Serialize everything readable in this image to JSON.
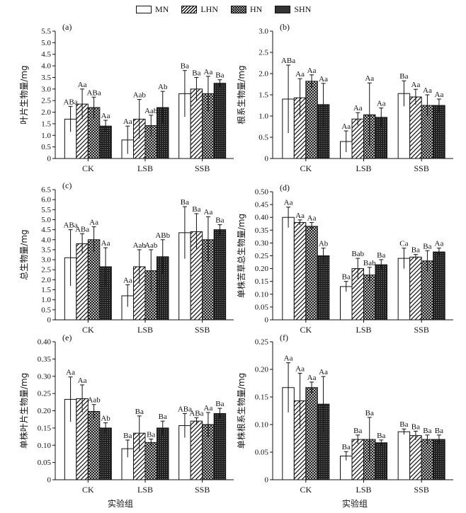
{
  "legend": {
    "series": [
      {
        "name": "MN",
        "pattern": "white"
      },
      {
        "name": "LHN",
        "pattern": "hatch"
      },
      {
        "name": "HN",
        "pattern": "cross"
      },
      {
        "name": "SHN",
        "pattern": "dense"
      }
    ]
  },
  "xlabel_left": "实验组",
  "xlabel_right": "实验组",
  "chart_data": [
    {
      "type": "bar",
      "panel": "(a)",
      "ylabel": "叶片生物量/mg",
      "categories": [
        "CK",
        "LSB",
        "SSB"
      ],
      "ylim": [
        0,
        5.5
      ],
      "yticks": [
        "0",
        "0.5",
        "1.0",
        "1.5",
        "2.0",
        "2.5",
        "3.0",
        "3.5",
        "4.0",
        "4.5",
        "5.0",
        "5.5"
      ],
      "series": [
        {
          "name": "MN",
          "values": [
            1.7,
            0.8,
            2.8
          ],
          "err": [
            0.55,
            0.6,
            1.0
          ],
          "labels": [
            "ABa",
            "Aa",
            "Ba"
          ]
        },
        {
          "name": "LHN",
          "values": [
            2.35,
            1.7,
            3.0
          ],
          "err": [
            0.65,
            0.85,
            0.5
          ],
          "labels": [
            "Aa",
            "Aab",
            "Ba"
          ]
        },
        {
          "name": "HN",
          "values": [
            2.2,
            1.42,
            2.8
          ],
          "err": [
            0.45,
            0.45,
            0.75
          ],
          "labels": [
            "ABa",
            "Aab",
            "Aa"
          ]
        },
        {
          "name": "SHN",
          "values": [
            1.4,
            2.2,
            3.25
          ],
          "err": [
            0.25,
            0.7,
            0.15
          ],
          "labels": [
            "Aa",
            "Ab",
            "Ba"
          ]
        }
      ]
    },
    {
      "type": "bar",
      "panel": "(b)",
      "ylabel": "根系生物量/mg",
      "categories": [
        "CK",
        "LSB",
        "SSB"
      ],
      "ylim": [
        0,
        3.0
      ],
      "yticks": [
        "0",
        "0.5",
        "1.0",
        "1.5",
        "2.0",
        "2.5",
        "3.0"
      ],
      "series": [
        {
          "name": "MN",
          "values": [
            1.4,
            0.4,
            1.53
          ],
          "err": [
            0.8,
            0.25,
            0.3
          ],
          "labels": [
            "ABa",
            "Aa",
            "Ba"
          ]
        },
        {
          "name": "LHN",
          "values": [
            1.43,
            0.93,
            1.45
          ],
          "err": [
            0.45,
            0.15,
            0.18
          ],
          "labels": [
            "Aa",
            "Aa",
            "Aa"
          ]
        },
        {
          "name": "HN",
          "values": [
            1.82,
            1.03,
            1.25
          ],
          "err": [
            0.15,
            0.75,
            0.25
          ],
          "labels": [
            "Aa",
            "Aa",
            "Aa"
          ]
        },
        {
          "name": "SHN",
          "values": [
            1.27,
            0.97,
            1.25
          ],
          "err": [
            0.5,
            0.22,
            0.15
          ],
          "labels": [
            "Aa",
            "Aa",
            "Aa"
          ]
        }
      ]
    },
    {
      "type": "bar",
      "panel": "(c)",
      "ylabel": "总生物量/mg",
      "categories": [
        "CK",
        "LSB",
        "SSB"
      ],
      "ylim": [
        0,
        6.5
      ],
      "yticks": [
        "0",
        "0.5",
        "1.0",
        "1.5",
        "2.0",
        "2.5",
        "3.0",
        "3.5",
        "4.0",
        "4.5",
        "5.0",
        "5.5",
        "6.0",
        "6.5"
      ],
      "series": [
        {
          "name": "MN",
          "values": [
            3.1,
            1.2,
            4.35
          ],
          "err": [
            1.4,
            0.55,
            1.3
          ],
          "labels": [
            "ABa",
            "Aa",
            "Ba"
          ]
        },
        {
          "name": "LHN",
          "values": [
            3.8,
            2.65,
            4.4
          ],
          "err": [
            0.5,
            0.85,
            0.9
          ],
          "labels": [
            "ABa",
            "Aab",
            "Ba"
          ]
        },
        {
          "name": "HN",
          "values": [
            4.0,
            2.45,
            4.0
          ],
          "err": [
            0.65,
            1.05,
            1.15
          ],
          "labels": [
            "Aa",
            "Aab",
            "Aa"
          ]
        },
        {
          "name": "SHN",
          "values": [
            2.65,
            3.15,
            4.5
          ],
          "err": [
            0.95,
            0.85,
            0.25
          ],
          "labels": [
            "Aa",
            "ABb",
            "Ba"
          ]
        }
      ]
    },
    {
      "type": "bar",
      "panel": "(d)",
      "ylabel": "单株苦草总生物量/mg",
      "categories": [
        "CK",
        "LSB",
        "SSB"
      ],
      "ylim": [
        0,
        0.5
      ],
      "yticks": [
        "0",
        "0.05",
        "0.10",
        "0.15",
        "0.20",
        "0.25",
        "0.30",
        "0.35",
        "0.40",
        "0.45",
        "0.50"
      ],
      "series": [
        {
          "name": "MN",
          "values": [
            0.4,
            0.13,
            0.24
          ],
          "err": [
            0.04,
            0.02,
            0.04
          ],
          "labels": [
            "Aa",
            "Ba",
            "Ca"
          ]
        },
        {
          "name": "LHN",
          "values": [
            0.38,
            0.2,
            0.245
          ],
          "err": [
            0.01,
            0.04,
            0.01
          ],
          "labels": [
            "Aa",
            "Bab",
            "Ba"
          ]
        },
        {
          "name": "HN",
          "values": [
            0.365,
            0.175,
            0.23
          ],
          "err": [
            0.015,
            0.03,
            0.04
          ],
          "labels": [
            "Aa",
            "Bab",
            "Ba"
          ]
        },
        {
          "name": "SHN",
          "values": [
            0.25,
            0.215,
            0.265
          ],
          "err": [
            0.03,
            0.02,
            0.015
          ],
          "labels": [
            "Ab",
            "Ba",
            "Aa"
          ]
        }
      ]
    },
    {
      "type": "bar",
      "panel": "(e)",
      "ylabel": "单株叶片生物量/mg",
      "categories": [
        "CK",
        "LSB",
        "SSB"
      ],
      "ylim": [
        0,
        0.4
      ],
      "yticks": [
        "0",
        "0.05",
        "0.10",
        "0.15",
        "0.20",
        "0.25",
        "0.30",
        "0.35",
        "0.40"
      ],
      "series": [
        {
          "name": "MN",
          "values": [
            0.233,
            0.09,
            0.157
          ],
          "err": [
            0.065,
            0.025,
            0.035
          ],
          "labels": [
            "Aa",
            "Ba",
            "ABa"
          ]
        },
        {
          "name": "LHN",
          "values": [
            0.235,
            0.135,
            0.17
          ],
          "err": [
            0.04,
            0.05,
            0.01
          ],
          "labels": [
            "Aa",
            "Ba",
            "ABa"
          ]
        },
        {
          "name": "HN",
          "values": [
            0.198,
            0.108,
            0.16
          ],
          "err": [
            0.02,
            0.01,
            0.035
          ],
          "labels": [
            "Aab",
            "Ba",
            "Aa"
          ]
        },
        {
          "name": "SHN",
          "values": [
            0.15,
            0.15,
            0.192
          ],
          "err": [
            0.015,
            0.02,
            0.015
          ],
          "labels": [
            "Ab",
            "Ba",
            "Ba"
          ]
        }
      ]
    },
    {
      "type": "bar",
      "panel": "(f)",
      "ylabel": "单株根系生物量/mg",
      "categories": [
        "CK",
        "LSB",
        "SSB"
      ],
      "ylim": [
        0,
        0.25
      ],
      "yticks": [
        "0",
        "0.05",
        "0.10",
        "0.15",
        "0.20",
        "0.25"
      ],
      "series": [
        {
          "name": "MN",
          "values": [
            0.167,
            0.043,
            0.087
          ],
          "err": [
            0.045,
            0.008,
            0.005
          ],
          "labels": [
            "Aa",
            "Ba",
            "Ba"
          ]
        },
        {
          "name": "LHN",
          "values": [
            0.143,
            0.073,
            0.08
          ],
          "err": [
            0.05,
            0.008,
            0.008
          ],
          "labels": [
            "Aa",
            "Ba",
            "Ba"
          ]
        },
        {
          "name": "HN",
          "values": [
            0.167,
            0.073,
            0.073
          ],
          "err": [
            0.01,
            0.04,
            0.008
          ],
          "labels": [
            "Aa",
            "Ba",
            "Ba"
          ]
        },
        {
          "name": "SHN",
          "values": [
            0.137,
            0.067,
            0.073
          ],
          "err": [
            0.05,
            0.005,
            0.008
          ],
          "labels": [
            "Aa",
            "Ba",
            "Ba"
          ]
        }
      ]
    }
  ]
}
